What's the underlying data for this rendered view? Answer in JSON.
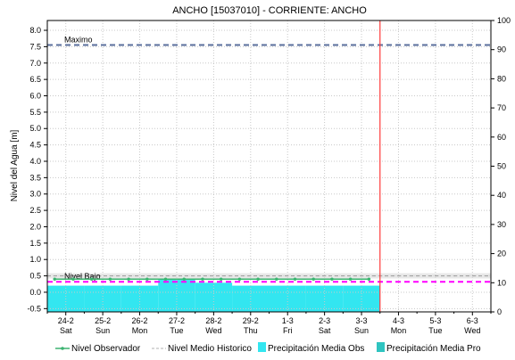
{
  "chart_data": {
    "type": "line",
    "title": "ANCHO    [15037010] - CORRIENTE: ANCHO",
    "ylabel": "Nivel del Agua [m]",
    "ylim": [
      -0.6,
      8.3
    ],
    "y_ticks": [
      "-0.5",
      "0.0",
      "0.5",
      "1.0",
      "1.5",
      "2.0",
      "2.5",
      "3.0",
      "3.5",
      "4.0",
      "4.5",
      "5.0",
      "5.5",
      "6.0",
      "6.5",
      "7.0",
      "7.5",
      "8.0"
    ],
    "y2lim": [
      0,
      100
    ],
    "y2_ticks": [
      "0",
      "10",
      "20",
      "30",
      "40",
      "50",
      "60",
      "70",
      "80",
      "90",
      "100"
    ],
    "x_days": [
      {
        "date": "24-2",
        "day": "Sat"
      },
      {
        "date": "25-2",
        "day": "Sun"
      },
      {
        "date": "26-2",
        "day": "Mon"
      },
      {
        "date": "27-2",
        "day": "Tue"
      },
      {
        "date": "28-2",
        "day": "Wed"
      },
      {
        "date": "29-2",
        "day": "Thu"
      },
      {
        "date": "1-3",
        "day": "Fri"
      },
      {
        "date": "2-3",
        "day": "Sat"
      },
      {
        "date": "3-3",
        "day": "Sun"
      },
      {
        "date": "4-3",
        "day": "Mon"
      },
      {
        "date": "5-3",
        "day": "Tue"
      },
      {
        "date": "6-3",
        "day": "Wed"
      }
    ],
    "x_range": [
      -0.5,
      11.5
    ],
    "now_line_x": 8.5,
    "grid": true,
    "thresholds": [
      {
        "label": "Maximo",
        "value": 7.55,
        "color": "#5a6f9c"
      },
      {
        "label": "Nivel Bajo",
        "value": 0.32,
        "color": "#ff00ff"
      }
    ],
    "series": [
      {
        "name": "Nivel Observador",
        "color": "#3cb371",
        "x": [
          -0.3,
          0.2,
          0.7,
          1.2,
          1.7,
          2.2,
          2.7,
          3.2,
          3.7,
          4.2,
          4.7,
          5.2,
          5.7,
          6.2,
          6.7,
          7.2,
          7.7,
          8.2
        ],
        "y": [
          0.4,
          0.4,
          0.4,
          0.4,
          0.4,
          0.4,
          0.4,
          0.4,
          0.4,
          0.4,
          0.4,
          0.4,
          0.4,
          0.4,
          0.4,
          0.4,
          0.4,
          0.4
        ]
      },
      {
        "name": "Nivel Medio Historico",
        "color": "#b0b0b0",
        "x": [
          -0.5,
          11.5
        ],
        "y": [
          0.5,
          0.5
        ]
      },
      {
        "name": "Precipitación Media Obs",
        "color": "#33e6f0",
        "x": [
          -0.5,
          0.5,
          1.5,
          2.5,
          3.5,
          4.5,
          5.5,
          6.5,
          7.5
        ],
        "values": [
          9,
          9,
          9,
          11,
          10,
          9,
          9,
          9,
          9
        ]
      },
      {
        "name": "Precipitación Media Pro",
        "color": "#2fc4c0",
        "x": [],
        "values": []
      }
    ]
  }
}
